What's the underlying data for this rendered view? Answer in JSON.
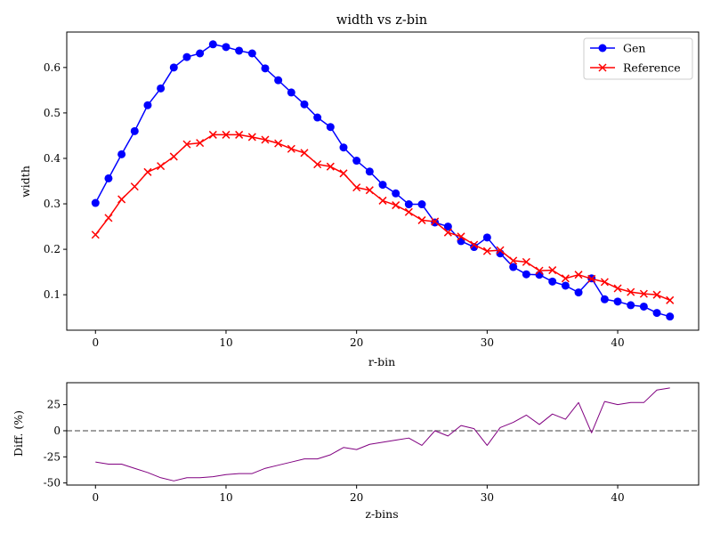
{
  "chart_data": [
    {
      "type": "line",
      "title": "width vs z-bin",
      "xlabel": "r-bin",
      "ylabel": "width",
      "xlim": [
        -2.2,
        46.2
      ],
      "ylim": [
        0.022,
        0.678
      ],
      "xticks": [
        0,
        10,
        20,
        30,
        40
      ],
      "yticks": [
        0.1,
        0.2,
        0.3,
        0.4,
        0.5,
        0.6
      ],
      "legend_position": "top-right",
      "x": [
        0,
        1,
        2,
        3,
        4,
        5,
        6,
        7,
        8,
        9,
        10,
        11,
        12,
        13,
        14,
        15,
        16,
        17,
        18,
        19,
        20,
        21,
        22,
        23,
        24,
        25,
        26,
        27,
        28,
        29,
        30,
        31,
        32,
        33,
        34,
        35,
        36,
        37,
        38,
        39,
        40,
        41,
        42,
        43,
        44
      ],
      "series": [
        {
          "name": "Gen",
          "color": "#0000ff",
          "marker": "circle",
          "values": [
            0.302,
            0.356,
            0.409,
            0.46,
            0.517,
            0.554,
            0.6,
            0.623,
            0.631,
            0.651,
            0.645,
            0.637,
            0.631,
            0.598,
            0.572,
            0.545,
            0.519,
            0.49,
            0.469,
            0.424,
            0.395,
            0.371,
            0.342,
            0.323,
            0.299,
            0.299,
            0.259,
            0.25,
            0.218,
            0.205,
            0.226,
            0.191,
            0.161,
            0.145,
            0.144,
            0.129,
            0.12,
            0.105,
            0.136,
            0.09,
            0.085,
            0.077,
            0.074,
            0.06,
            0.052
          ]
        },
        {
          "name": "Reference",
          "color": "#ff0000",
          "marker": "x",
          "values": [
            0.232,
            0.269,
            0.31,
            0.338,
            0.37,
            0.383,
            0.404,
            0.431,
            0.434,
            0.452,
            0.452,
            0.452,
            0.447,
            0.441,
            0.433,
            0.421,
            0.412,
            0.387,
            0.382,
            0.367,
            0.336,
            0.33,
            0.307,
            0.297,
            0.282,
            0.264,
            0.261,
            0.237,
            0.228,
            0.21,
            0.196,
            0.198,
            0.175,
            0.172,
            0.153,
            0.154,
            0.136,
            0.144,
            0.135,
            0.128,
            0.114,
            0.106,
            0.102,
            0.1,
            0.088
          ]
        }
      ]
    },
    {
      "type": "line",
      "title": "",
      "xlabel": "z-bins",
      "ylabel": "Diff. (%)",
      "xlim": [
        -2.2,
        46.2
      ],
      "ylim": [
        -52,
        46
      ],
      "xticks": [
        0,
        10,
        20,
        30,
        40
      ],
      "yticks": [
        -50,
        -25,
        0,
        25
      ],
      "reference_line": {
        "y": 0,
        "style": "dashed",
        "color": "#808080"
      },
      "x": [
        0,
        1,
        2,
        3,
        4,
        5,
        6,
        7,
        8,
        9,
        10,
        11,
        12,
        13,
        14,
        15,
        16,
        17,
        18,
        19,
        20,
        21,
        22,
        23,
        24,
        25,
        26,
        27,
        28,
        29,
        30,
        31,
        32,
        33,
        34,
        35,
        36,
        37,
        38,
        39,
        40,
        41,
        42,
        43,
        44
      ],
      "series": [
        {
          "color": "#800080",
          "values": [
            -30,
            -32,
            -32,
            -36,
            -40,
            -45,
            -48,
            -45,
            -45,
            -44,
            -42,
            -41,
            -41,
            -36,
            -33,
            -30,
            -27,
            -27,
            -23,
            -16,
            -18,
            -13,
            -11,
            -9,
            -7,
            -14,
            0,
            -5,
            5,
            2,
            -14,
            3,
            8,
            15,
            6,
            16,
            11,
            27,
            -2,
            28,
            25,
            27,
            27,
            39,
            41
          ]
        }
      ]
    }
  ]
}
